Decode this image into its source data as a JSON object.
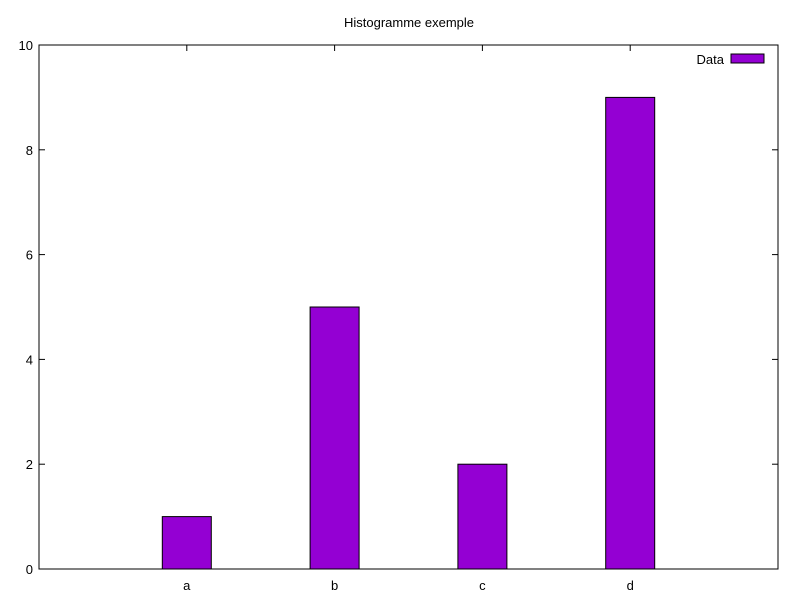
{
  "chart_data": {
    "type": "bar",
    "title": "Histogramme exemple",
    "xlabel": "",
    "ylabel": "",
    "categories": [
      "a",
      "b",
      "c",
      "d"
    ],
    "series": [
      {
        "name": "Data",
        "values": [
          1,
          5,
          2,
          9
        ],
        "color": "#9400d3"
      }
    ],
    "ylim": [
      0,
      10
    ],
    "yticks": [
      0,
      2,
      4,
      6,
      8,
      10
    ],
    "grid": false,
    "legend_position": "top-right"
  }
}
